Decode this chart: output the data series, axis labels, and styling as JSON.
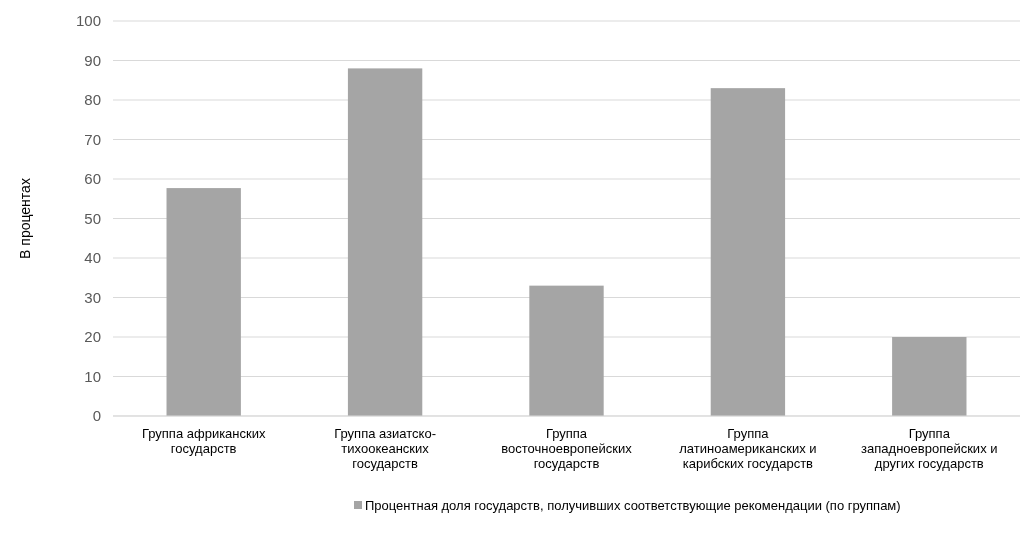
{
  "chart_data": {
    "type": "bar",
    "ylabel": "В процентах",
    "categories": [
      "Группа африканских государств",
      "Группа азиатско-тихоокеанских государств",
      "Группа восточноевропейских государств",
      "Группа латиноамериканских и карибских государств",
      "Группа западноевропейских и других государств"
    ],
    "series": [
      {
        "name": "Процентная доля государств, получивших соответствующие рекомендации (по группам)",
        "color": "#a5a5a5",
        "values": [
          57.7,
          88,
          33,
          83,
          20
        ]
      }
    ],
    "ylim": [
      0,
      100
    ],
    "yticks": [
      0,
      10,
      20,
      30,
      40,
      50,
      60,
      70,
      80,
      90,
      100
    ],
    "grid": "y",
    "legend": "bottom"
  }
}
